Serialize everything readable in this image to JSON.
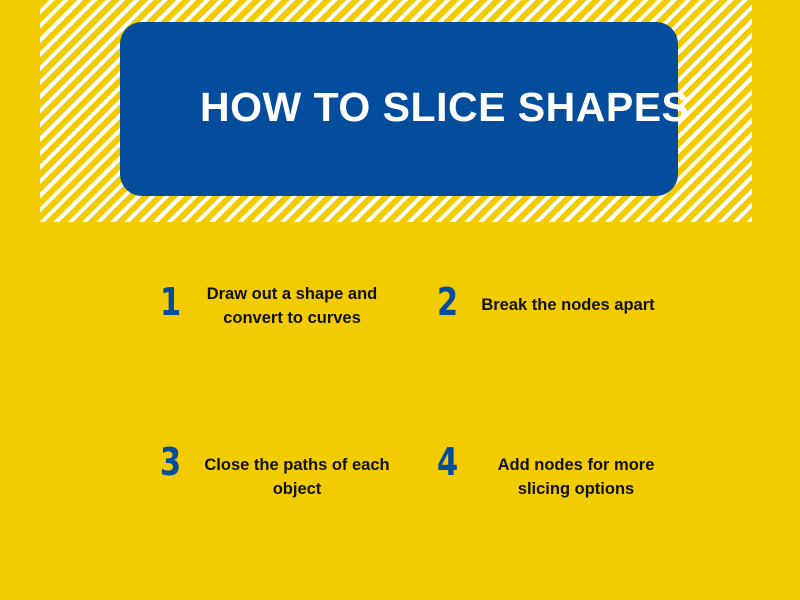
{
  "colors": {
    "background": "#F2CB00",
    "title_card": "#044D9D",
    "stripe": "#FFFFFF",
    "step_number": "#044D9D",
    "step_text": "#111111",
    "title_text": "#FFFFFF"
  },
  "title": "HOW TO SLICE SHAPES",
  "steps": [
    {
      "number": "1",
      "text": "Draw out a shape and convert to curves"
    },
    {
      "number": "2",
      "text": "Break the nodes apart"
    },
    {
      "number": "3",
      "text": "Close the paths of each object"
    },
    {
      "number": "4",
      "text": "Add nodes for more slicing options"
    }
  ]
}
